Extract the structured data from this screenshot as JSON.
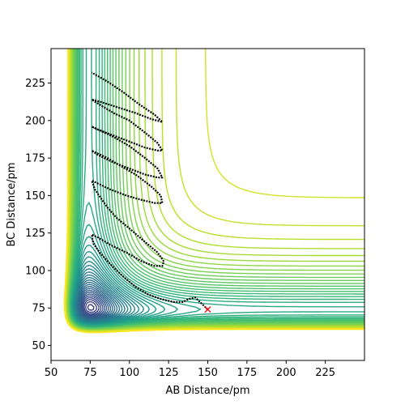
{
  "chart_data": {
    "type": "contour",
    "xlabel": "AB Distance/pm",
    "ylabel": "BC Distance/pm",
    "xlim": [
      50,
      250
    ],
    "ylim": [
      40,
      248
    ],
    "xticks": [
      50,
      75,
      100,
      125,
      150,
      175,
      200,
      225
    ],
    "yticks": [
      50,
      75,
      100,
      125,
      150,
      175,
      200,
      225
    ],
    "colormap": "viridis",
    "grid": false,
    "contours": {
      "asymptote_x_pm": 74,
      "asymptote_y_pm": 74,
      "well_x_pm": 80,
      "well_y_pm": 80,
      "level_count": 60
    },
    "trajectory": {
      "color": "#000000",
      "points": [
        [
          150,
          74
        ],
        [
          146,
          78
        ],
        [
          142,
          82
        ],
        [
          138,
          81
        ],
        [
          134,
          79
        ],
        [
          128,
          79
        ],
        [
          120,
          81
        ],
        [
          112,
          84
        ],
        [
          104,
          89
        ],
        [
          96,
          96
        ],
        [
          88,
          104
        ],
        [
          81,
          112
        ],
        [
          77,
          118
        ],
        [
          76,
          124
        ],
        [
          80,
          122
        ],
        [
          88,
          117
        ],
        [
          98,
          112
        ],
        [
          108,
          106
        ],
        [
          116,
          103
        ],
        [
          121,
          103
        ],
        [
          122,
          106
        ],
        [
          118,
          112
        ],
        [
          110,
          119
        ],
        [
          100,
          128
        ],
        [
          92,
          135
        ],
        [
          86,
          142
        ],
        [
          82,
          148
        ],
        [
          78,
          154
        ],
        [
          76,
          160
        ],
        [
          80,
          158
        ],
        [
          88,
          154
        ],
        [
          98,
          150
        ],
        [
          108,
          147
        ],
        [
          116,
          145
        ],
        [
          121,
          145
        ],
        [
          120,
          150
        ],
        [
          114,
          156
        ],
        [
          104,
          164
        ],
        [
          94,
          170
        ],
        [
          86,
          175
        ],
        [
          80,
          178
        ],
        [
          76,
          180
        ],
        [
          80,
          177
        ],
        [
          90,
          172
        ],
        [
          100,
          168
        ],
        [
          110,
          164
        ],
        [
          118,
          162
        ],
        [
          121,
          162
        ],
        [
          118,
          168
        ],
        [
          110,
          175
        ],
        [
          100,
          183
        ],
        [
          90,
          189
        ],
        [
          82,
          193
        ],
        [
          76,
          196
        ],
        [
          80,
          194
        ],
        [
          90,
          190
        ],
        [
          100,
          186
        ],
        [
          110,
          182
        ],
        [
          118,
          180
        ],
        [
          121,
          180
        ],
        [
          118,
          185
        ],
        [
          110,
          192
        ],
        [
          100,
          200
        ],
        [
          90,
          205
        ],
        [
          82,
          210
        ],
        [
          76,
          214
        ],
        [
          80,
          213
        ],
        [
          92,
          209
        ],
        [
          104,
          205
        ],
        [
          114,
          201
        ],
        [
          121,
          199
        ],
        [
          116,
          204
        ],
        [
          106,
          211
        ],
        [
          96,
          219
        ],
        [
          86,
          226
        ],
        [
          76,
          232
        ]
      ]
    },
    "end_marker": {
      "x": 150,
      "y": 74,
      "symbol": "x",
      "color": "#ff0000"
    }
  }
}
